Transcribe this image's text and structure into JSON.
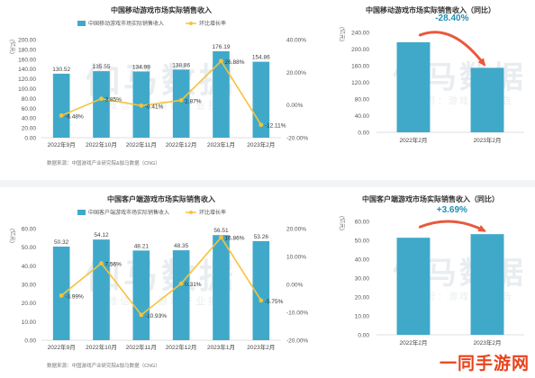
{
  "site_logo": "一同手游网",
  "chart_data": [
    {
      "id": "p1",
      "type": "bar",
      "title": "中国移动游戏市场实际销售收入",
      "unit_label": "(亿元)",
      "categories": [
        "2022年9月",
        "2022年10月",
        "2022年11月",
        "2022年12月",
        "2023年1月",
        "2023年2月"
      ],
      "series": [
        {
          "name": "中国移动游戏市场实际销售收入",
          "type": "bar",
          "values": [
            130.52,
            135.55,
            134.99,
            138.86,
            176.19,
            154.86
          ]
        },
        {
          "name": "环比增长率",
          "type": "line",
          "axis": "right",
          "values": [
            -6.48,
            3.85,
            -0.41,
            2.87,
            26.88,
            -12.11
          ]
        }
      ],
      "bar_labels": [
        "130.52",
        "135.55",
        "134.99",
        "138.86",
        "176.19",
        "154.86"
      ],
      "line_labels": [
        "-6.48%",
        "3.85%",
        "-0.41%",
        "2.87%",
        "26.88%",
        "-12.11%"
      ],
      "ylim": [
        0,
        200
      ],
      "yticks": [
        "0.00",
        "20.00",
        "40.00",
        "60.00",
        "80.00",
        "100.00",
        "120.00",
        "140.00",
        "160.00",
        "180.00",
        "200.00"
      ],
      "y2lim": [
        -20,
        40
      ],
      "y2ticks": [
        "-20.00%",
        "0.00%",
        "20.00%",
        "40.00%"
      ],
      "source": "数据来源：中国游戏产业研究院&伽马数据（CNG）",
      "watermark": "伽马数据",
      "watermark_sub": "微信号：游戏产业报告",
      "colors": {
        "bar": "#40a9c9",
        "line": "#f5c33b"
      }
    },
    {
      "id": "p2",
      "type": "bar",
      "title": "中国移动游戏市场实际销售收入（同比）",
      "unit_label": "(亿元)",
      "categories": [
        "2022年2月",
        "2023年2月"
      ],
      "values": [
        216.32,
        154.86
      ],
      "ylim": [
        0,
        240
      ],
      "yticks": [
        "0.00",
        "40.00",
        "80.00",
        "120.00",
        "160.00",
        "200.00",
        "240.00"
      ],
      "change_label": "-28.40%",
      "watermark": "伽马数据",
      "watermark_sub": "微信号：游戏产业报告",
      "colors": {
        "bar": "#40a9c9",
        "arrow": "#e8593c",
        "change": "#1f8fb3"
      }
    },
    {
      "id": "p3",
      "type": "bar",
      "title": "中国客户端游戏市场实际销售收入",
      "unit_label": "(亿元)",
      "categories": [
        "2022年9月",
        "2022年10月",
        "2022年11月",
        "2022年12月",
        "2023年1月",
        "2023年2月"
      ],
      "series": [
        {
          "name": "中国客户端游戏市场实际销售收入",
          "type": "bar",
          "values": [
            50.32,
            54.12,
            48.21,
            48.35,
            56.51,
            53.26
          ]
        },
        {
          "name": "环比增长率",
          "type": "line",
          "axis": "right",
          "values": [
            -3.99,
            7.56,
            -10.93,
            0.31,
            16.86,
            -5.75
          ]
        }
      ],
      "bar_labels": [
        "50.32",
        "54.12",
        "48.21",
        "48.35",
        "56.51",
        "53.26"
      ],
      "line_labels": [
        "-3.99%",
        "7.56%",
        "-10.93%",
        "0.31%",
        "16.86%",
        "-5.75%"
      ],
      "ylim": [
        0,
        60
      ],
      "yticks": [
        "0.00",
        "10.00",
        "20.00",
        "30.00",
        "40.00",
        "50.00",
        "60.00"
      ],
      "y2lim": [
        -20,
        20
      ],
      "y2ticks": [
        "-20.00%",
        "-10.00%",
        "0.00%",
        "10.00%",
        "20.00%"
      ],
      "source": "数据来源：中国游戏产业研究院&伽马数据（CNG）",
      "watermark": "伽马数据",
      "watermark_sub": "微信号：游戏产业报告",
      "colors": {
        "bar": "#40a9c9",
        "line": "#f5c33b"
      }
    },
    {
      "id": "p4",
      "type": "bar",
      "title": "中国客户端游戏市场实际销售收入（同比）",
      "unit_label": "(亿元)",
      "categories": [
        "2022年2月",
        "2023年2月"
      ],
      "values": [
        51.36,
        53.26
      ],
      "ylim": [
        0,
        60
      ],
      "yticks": [
        "0.00",
        "10.00",
        "20.00",
        "30.00",
        "40.00",
        "50.00",
        "60.00"
      ],
      "change_label": "+3.69%",
      "watermark": "伽马数据",
      "watermark_sub": "微信号：游戏产业报告",
      "colors": {
        "bar": "#40a9c9",
        "arrow": "#e8593c",
        "change": "#1f8fb3"
      }
    }
  ]
}
